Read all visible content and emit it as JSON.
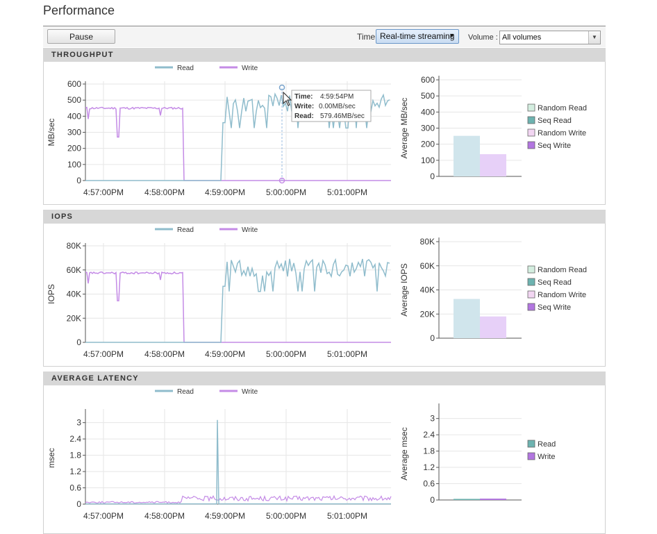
{
  "page": {
    "title": "Performance"
  },
  "toolbar": {
    "pause_label": "Pause",
    "time_label": "Time",
    "time_value": "Real-time streaming",
    "volume_label": "Volume :",
    "volume_value": "All volumes"
  },
  "colors": {
    "read": "#8fbccc",
    "write": "#c48be6",
    "grid": "#e6e6e6"
  },
  "tooltip": {
    "time_label": "Time:",
    "time_value": "4:59:54PM",
    "write_label": "Write:",
    "write_value": "0.00MB/sec",
    "read_label": "Read:",
    "read_value": "579.46MB/sec"
  },
  "panels": [
    {
      "id": "throughput",
      "header": "THROUGHPUT",
      "line_legend": [
        "Read",
        "Write"
      ],
      "ylabel": "MB/sec",
      "y_ticks": [
        "600",
        "500",
        "400",
        "300",
        "200",
        "100",
        "0"
      ],
      "ymax": 600,
      "x_ticks": [
        "4:57:00PM",
        "4:58:00PM",
        "4:59:00PM",
        "5:00:00PM",
        "5:01:00PM"
      ],
      "bar_ylabel": "Average MB/sec",
      "bar_ticks": [
        "600",
        "500",
        "400",
        "300",
        "200",
        "100",
        "0"
      ],
      "bar_max": 600,
      "bar_legend": [
        "Random Read",
        "Seq Read",
        "Random Write",
        "Seq Write"
      ],
      "bar_legend_colors": [
        "#d4eee0",
        "#6db3b0",
        "#f2d6f2",
        "#b276e0"
      ],
      "bar_values": [
        252,
        138
      ],
      "write_level": 450,
      "read_level": 480,
      "read_amp": 60
    },
    {
      "id": "iops",
      "header": "IOPS",
      "line_legend": [
        "Read",
        "Write"
      ],
      "ylabel": "IOPS",
      "y_ticks": [
        "80K",
        "60K",
        "40K",
        "20K",
        "0"
      ],
      "ymax": 80000,
      "x_ticks": [
        "4:57:00PM",
        "4:58:00PM",
        "4:59:00PM",
        "5:00:00PM",
        "5:01:00PM"
      ],
      "bar_ylabel": "Average IOPS",
      "bar_ticks": [
        "80K",
        "60K",
        "40K",
        "20K",
        "0"
      ],
      "bar_max": 80000,
      "bar_legend": [
        "Random Read",
        "Seq Read",
        "Random Write",
        "Seq Write"
      ],
      "bar_legend_colors": [
        "#d4eee0",
        "#6db3b0",
        "#f2d6f2",
        "#b276e0"
      ],
      "bar_values": [
        32500,
        18000
      ],
      "write_level": 57500,
      "read_level": 62000,
      "read_amp": 7500
    },
    {
      "id": "latency",
      "header": "AVERAGE LATENCY",
      "line_legend": [
        "Read",
        "Write"
      ],
      "ylabel": "msec",
      "y_ticks": [
        "3",
        "2.4",
        "1.8",
        "1.2",
        "0.6",
        "0"
      ],
      "ymax": 3.4,
      "x_ticks": [
        "4:57:00PM",
        "4:58:00PM",
        "4:59:00PM",
        "5:00:00PM",
        "5:01:00PM"
      ],
      "bar_ylabel": "Average msec",
      "bar_ticks": [
        "3",
        "2.4",
        "1.8",
        "1.2",
        "0.6",
        "0"
      ],
      "bar_max": 3.4,
      "bar_legend": [
        "Read",
        "Write"
      ],
      "bar_legend_colors": [
        "#6db3b0",
        "#b276e0"
      ],
      "bar_values": [
        0.04,
        0.05
      ],
      "spike_value": 3.1
    }
  ]
}
